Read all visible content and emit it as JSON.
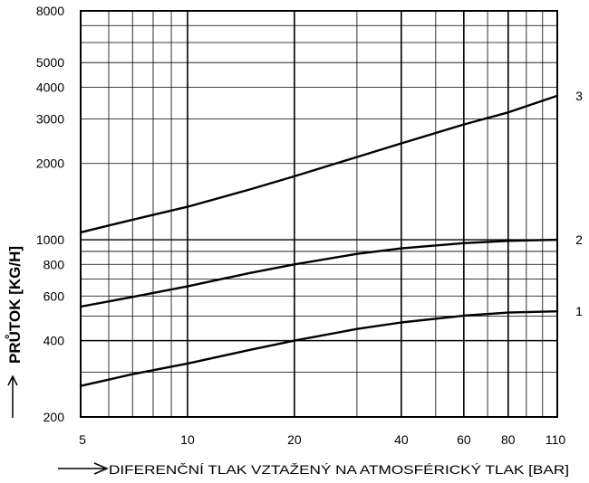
{
  "chart_data": {
    "type": "line",
    "title": "",
    "xlabel": "DIFERENČNÍ TLAK VZTAŽENÝ NA ATMOSFÉRICKÝ TLAK [BAR]",
    "ylabel": "PRŮTOK [KG/H]",
    "xscale": "log",
    "yscale": "log",
    "xlim": [
      5,
      110
    ],
    "ylim": [
      200,
      8000
    ],
    "grid": true,
    "legend": "curve numbers at right end of lines",
    "x_ticks": [
      5,
      10,
      20,
      40,
      60,
      80,
      110
    ],
    "x_tick_labels": [
      "5",
      "10",
      "20",
      "40",
      "60",
      "80",
      "110"
    ],
    "y_ticks": [
      200,
      400,
      600,
      800,
      1000,
      2000,
      3000,
      4000,
      5000,
      8000
    ],
    "y_tick_labels": [
      "200",
      "400",
      "600",
      "800",
      "1000",
      "2000",
      "3000",
      "4000",
      "5000",
      "8000"
    ],
    "series": [
      {
        "name": "1",
        "x": [
          5,
          7,
          10,
          15,
          20,
          30,
          40,
          60,
          80,
          110
        ],
        "values": [
          265,
          295,
          325,
          368,
          400,
          445,
          472,
          502,
          516,
          522
        ]
      },
      {
        "name": "2",
        "x": [
          5,
          7,
          10,
          15,
          20,
          30,
          40,
          60,
          80,
          110
        ],
        "values": [
          545,
          595,
          655,
          740,
          800,
          880,
          925,
          970,
          990,
          1000
        ]
      },
      {
        "name": "3",
        "x": [
          5,
          7,
          10,
          15,
          20,
          30,
          40,
          60,
          80,
          110
        ],
        "values": [
          1070,
          1200,
          1350,
          1580,
          1780,
          2120,
          2400,
          2850,
          3180,
          3700
        ]
      }
    ]
  }
}
